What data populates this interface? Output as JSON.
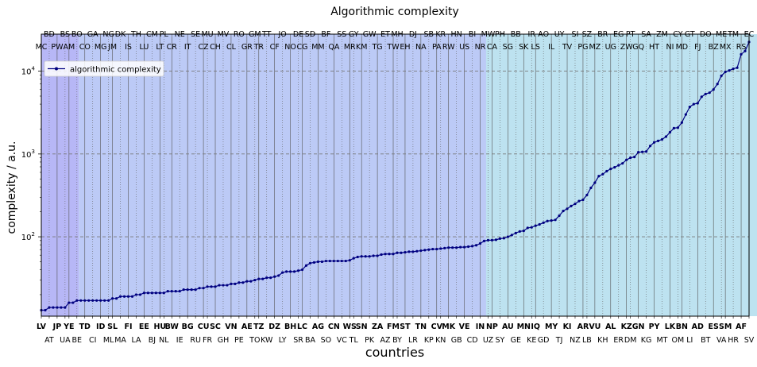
{
  "chart_data": {
    "type": "line",
    "title": "Algorithmic complexity",
    "xlabel": "countries",
    "ylabel": "complexity / a.u.",
    "yscale": "log",
    "ylim": [
      11,
      28000
    ],
    "yticks": [
      {
        "value": 100,
        "base": "10",
        "exp": "2"
      },
      {
        "value": 1000,
        "base": "10",
        "exp": "3"
      },
      {
        "value": 10000,
        "base": "10",
        "exp": "4"
      }
    ],
    "grid": "horizontal dashed at major ticks; vertical dotted at every country",
    "legend": {
      "position": "top-left",
      "label": "algorithmic complexity"
    },
    "line_color": "#000080",
    "countries": [
      "LV",
      "AT",
      "JP",
      "UA",
      "YE",
      "BE",
      "TD",
      "CI",
      "ID",
      "ML",
      "SL",
      "MA",
      "FI",
      "LA",
      "EE",
      "BJ",
      "HU",
      "NL",
      "BW",
      "IE",
      "BG",
      "RU",
      "CU",
      "FR",
      "SC",
      "GH",
      "VN",
      "PE",
      "AE",
      "TO",
      "TZ",
      "KW",
      "DZ",
      "LY",
      "BH",
      "SR",
      "LC",
      "BA",
      "AG",
      "SO",
      "CN",
      "VC",
      "WS",
      "TL",
      "SN",
      "PK",
      "ZA",
      "AZ",
      "FM",
      "BY",
      "ST",
      "LR",
      "TN",
      "KP",
      "CV",
      "KN",
      "MK",
      "GB",
      "VE",
      "CD",
      "IN",
      "UZ",
      "NP",
      "SY",
      "AU",
      "GE",
      "MN",
      "KE",
      "IQ",
      "GD",
      "MY",
      "TJ",
      "KI",
      "NZ",
      "AR",
      "LB",
      "VU",
      "KH",
      "AL",
      "ER",
      "KZ",
      "DM",
      "GN",
      "KG",
      "PY",
      "MT",
      "LK",
      "OM",
      "BN",
      "LI",
      "AD",
      "BT",
      "ES",
      "VA",
      "SM",
      "HR",
      "AF",
      "SV"
    ],
    "top_labels": [
      "MC",
      "BD",
      "PW",
      "BS",
      "AM",
      "BO",
      "CO",
      "GA",
      "MG",
      "NG",
      "JM",
      "DK",
      "IS",
      "TH",
      "LU",
      "CM",
      "LT",
      "PL",
      "CR",
      "NE",
      "IT",
      "SE",
      "CZ",
      "MU",
      "CH",
      "MV",
      "CL",
      "RO",
      "GR",
      "GM",
      "TR",
      "TT",
      "CF",
      "JO",
      "NO",
      "DE",
      "CG",
      "SD",
      "MM",
      "BF",
      "QA",
      "SS",
      "MR",
      "GY",
      "KM",
      "GW",
      "TG",
      "ET",
      "TW",
      "MH",
      "EH",
      "DJ",
      "NA",
      "SB",
      "PA",
      "KR",
      "RW",
      "HN",
      "US",
      "BI",
      "NR",
      "MW",
      "CA",
      "PH",
      "SG",
      "BB",
      "SK",
      "IR",
      "LS",
      "AO",
      "IL",
      "UY",
      "TV",
      "SI",
      "PG",
      "SZ",
      "MZ",
      "BR",
      "UG",
      "EG",
      "ZW",
      "PT",
      "GQ",
      "SA",
      "HT",
      "ZM",
      "NI",
      "CY",
      "MD",
      "GT",
      "FJ",
      "DO",
      "BZ",
      "ME",
      "MX",
      "TM",
      "RS",
      "EC"
    ],
    "values": [
      13,
      13,
      14,
      14,
      14,
      14,
      14,
      16,
      16,
      17,
      17,
      17,
      17,
      17,
      17,
      17,
      17,
      17,
      18,
      18,
      19,
      19,
      19,
      19,
      20,
      20,
      21,
      21,
      21,
      21,
      21,
      21,
      22,
      22,
      22,
      22,
      23,
      23,
      23,
      23,
      24,
      24,
      25,
      25,
      25,
      26,
      26,
      26,
      27,
      27,
      28,
      28,
      29,
      29,
      30,
      31,
      31,
      32,
      32,
      33,
      34,
      37,
      38,
      38,
      38,
      39,
      40,
      45,
      48,
      49,
      50,
      50,
      51,
      51,
      51,
      51,
      51,
      51,
      52,
      55,
      57,
      58,
      58,
      58,
      59,
      59,
      61,
      62,
      62,
      62,
      64,
      64,
      65,
      66,
      66,
      67,
      68,
      69,
      70,
      71,
      71,
      72,
      73,
      74,
      74,
      74,
      75,
      75,
      76,
      77,
      79,
      83,
      89,
      91,
      91,
      92,
      95,
      96,
      100,
      105,
      111,
      116,
      118,
      128,
      130,
      136,
      141,
      148,
      155,
      157,
      160,
      180,
      205,
      218,
      235,
      250,
      270,
      280,
      320,
      390,
      450,
      540,
      570,
      620,
      660,
      690,
      730,
      770,
      850,
      900,
      920,
      1050,
      1060,
      1070,
      1250,
      1380,
      1440,
      1500,
      1620,
      1830,
      2050,
      2080,
      2400,
      3000,
      3700,
      4000,
      4100,
      4900,
      5300,
      5500,
      6000,
      7000,
      8800,
      9800,
      10200,
      10700,
      11000,
      16000,
      17500,
      22500
    ],
    "regions": [
      {
        "from": 0,
        "to": 9,
        "color": "#b7b7f6"
      },
      {
        "from": 10,
        "to": 112,
        "color": "#bccaf6"
      },
      {
        "from": 113,
        "to": 216,
        "color": "#bde2f0"
      },
      {
        "from": 217,
        "to": 310,
        "color": "#b6f2e2"
      },
      {
        "from": 311,
        "to": 347,
        "color": "#b2fcde"
      }
    ]
  }
}
